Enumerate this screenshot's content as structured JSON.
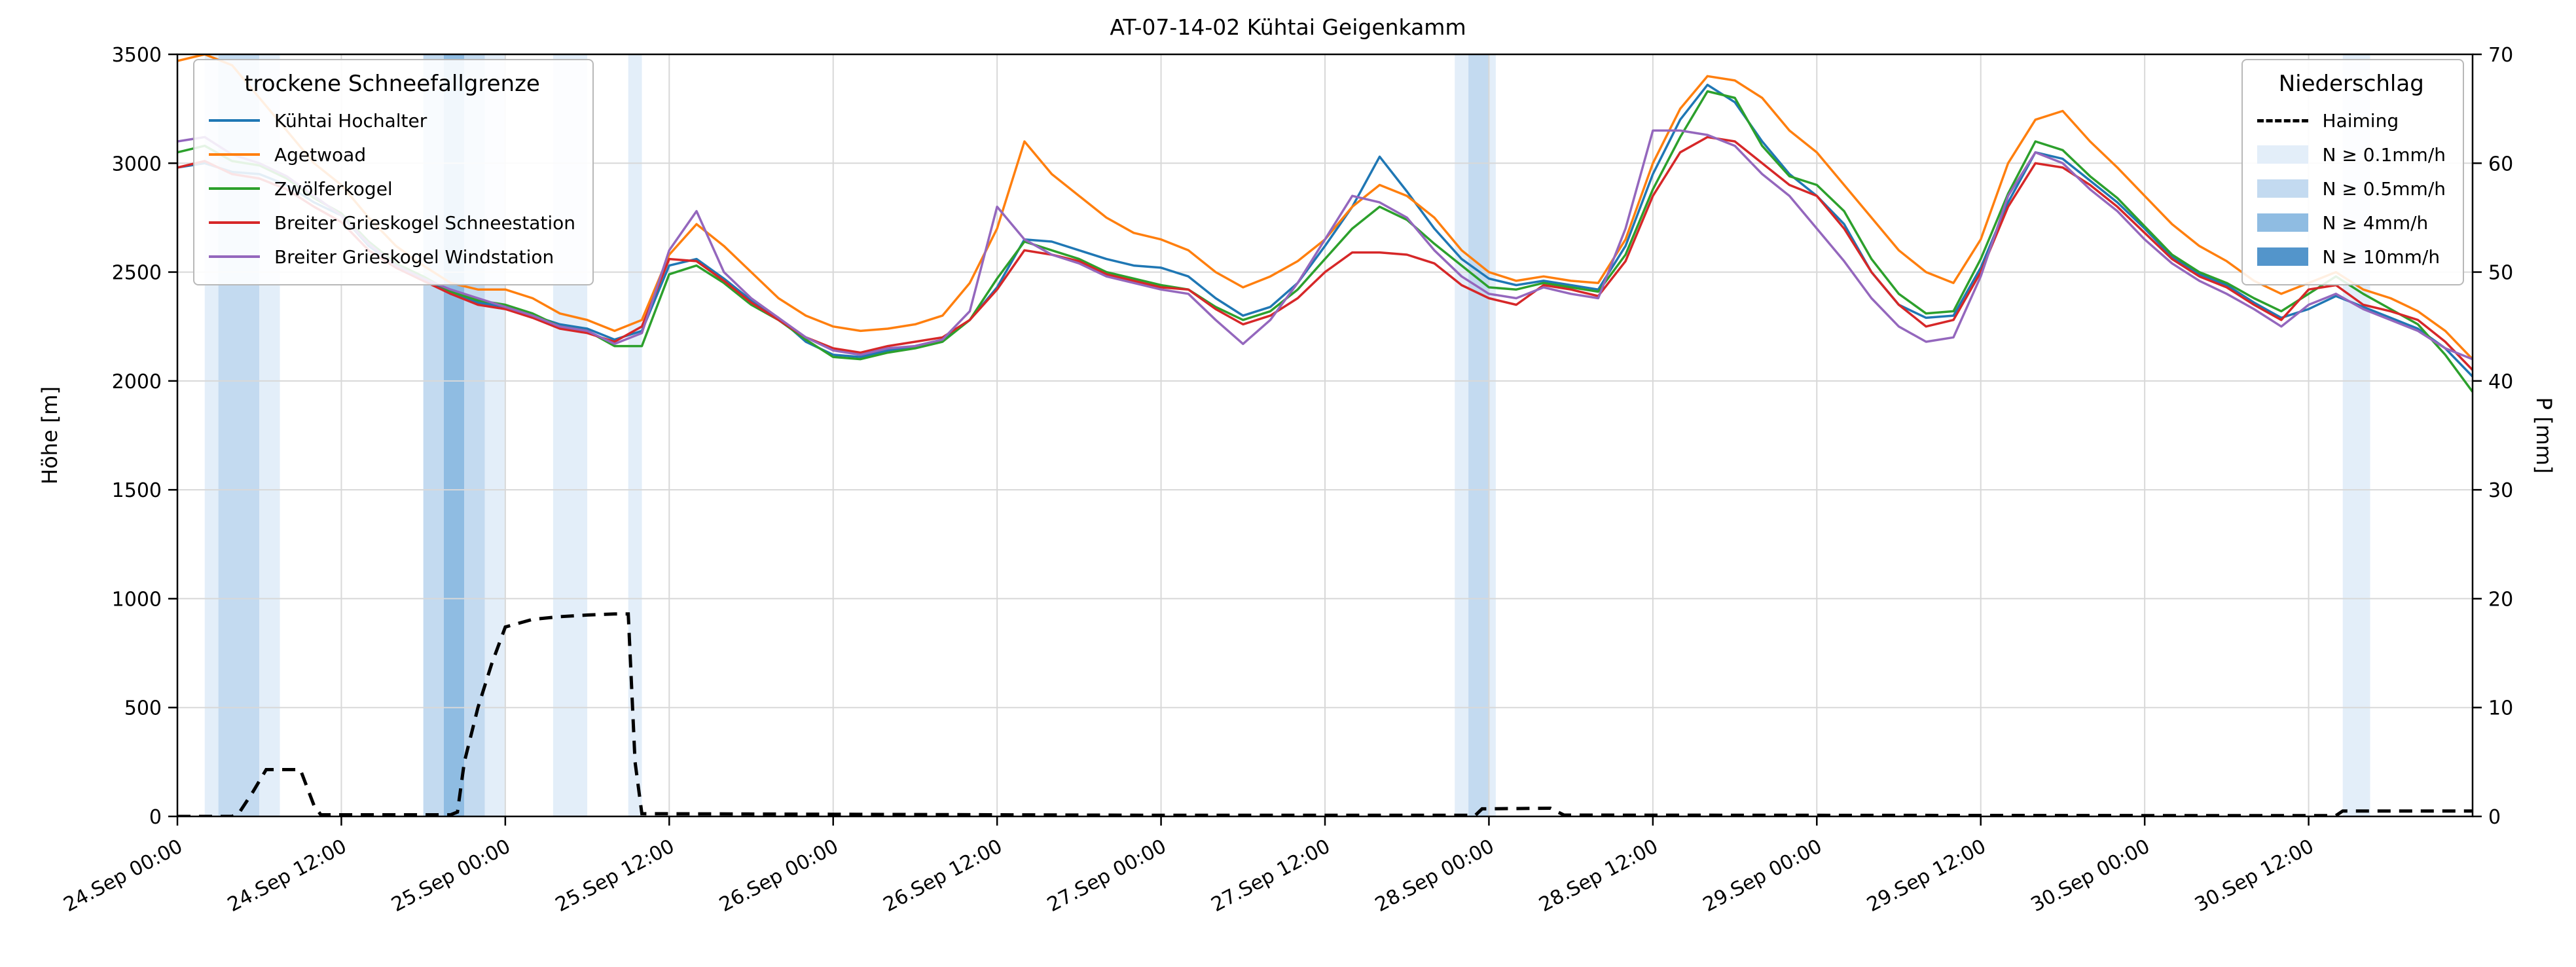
{
  "chart_data": {
    "type": "line",
    "title": "AT-07-14-02 Kühtai Geigenkamm",
    "ylabel_left": "Höhe [m]",
    "ylabel_right": "P [mm]",
    "ylim_left": [
      0,
      3500
    ],
    "ylim_right": [
      0,
      70
    ],
    "yticks_left": [
      0,
      500,
      1000,
      1500,
      2000,
      2500,
      3000,
      3500
    ],
    "yticks_right": [
      0,
      10,
      20,
      30,
      40,
      50,
      60,
      70
    ],
    "grid": true,
    "grid_color": "#d8d8d8",
    "x_unit": "hours since 24.Sep 00:00",
    "x_range": [
      0,
      168
    ],
    "x_step_hours": 2,
    "xticks": [
      {
        "t": 0,
        "label": "24.Sep 00:00"
      },
      {
        "t": 12,
        "label": "24.Sep 12:00"
      },
      {
        "t": 24,
        "label": "25.Sep 00:00"
      },
      {
        "t": 36,
        "label": "25.Sep 12:00"
      },
      {
        "t": 48,
        "label": "26.Sep 00:00"
      },
      {
        "t": 60,
        "label": "26.Sep 12:00"
      },
      {
        "t": 72,
        "label": "27.Sep 00:00"
      },
      {
        "t": 84,
        "label": "27.Sep 12:00"
      },
      {
        "t": 96,
        "label": "28.Sep 00:00"
      },
      {
        "t": 108,
        "label": "28.Sep 12:00"
      },
      {
        "t": 120,
        "label": "29.Sep 00:00"
      },
      {
        "t": 132,
        "label": "29.Sep 12:00"
      },
      {
        "t": 144,
        "label": "30.Sep 00:00"
      },
      {
        "t": 156,
        "label": "30.Sep 12:00"
      }
    ],
    "legend_snowline_title": "trockene Schneefallgrenze",
    "legend_precip_title": "Niederschlag",
    "series": [
      {
        "name": "Kühtai Hochalter",
        "color": "#1f77b4",
        "values": [
          2980,
          3000,
          2960,
          2950,
          2900,
          2820,
          2760,
          2620,
          2530,
          2470,
          2400,
          2360,
          2340,
          2300,
          2260,
          2240,
          2190,
          2230,
          2530,
          2560,
          2470,
          2370,
          2290,
          2180,
          2120,
          2110,
          2140,
          2160,
          2190,
          2280,
          2430,
          2650,
          2640,
          2600,
          2560,
          2530,
          2520,
          2480,
          2380,
          2300,
          2340,
          2450,
          2620,
          2800,
          3030,
          2870,
          2700,
          2560,
          2470,
          2440,
          2460,
          2440,
          2420,
          2620,
          2950,
          3200,
          3360,
          3280,
          3100,
          2950,
          2850,
          2720,
          2500,
          2350,
          2290,
          2300,
          2520,
          2820,
          3050,
          3020,
          2920,
          2820,
          2700,
          2570,
          2490,
          2440,
          2360,
          2290,
          2330,
          2390,
          2340,
          2290,
          2240,
          2150,
          2020
        ]
      },
      {
        "name": "Agetwoad",
        "color": "#ff7f0e",
        "values": [
          3470,
          3500,
          3450,
          3300,
          3150,
          3000,
          2900,
          2750,
          2620,
          2530,
          2450,
          2420,
          2420,
          2380,
          2310,
          2280,
          2230,
          2280,
          2580,
          2720,
          2620,
          2500,
          2380,
          2300,
          2250,
          2230,
          2240,
          2260,
          2300,
          2450,
          2700,
          3100,
          2950,
          2850,
          2750,
          2680,
          2650,
          2600,
          2500,
          2430,
          2480,
          2550,
          2650,
          2800,
          2900,
          2850,
          2750,
          2600,
          2500,
          2460,
          2480,
          2460,
          2450,
          2650,
          3000,
          3250,
          3400,
          3380,
          3300,
          3150,
          3050,
          2900,
          2750,
          2600,
          2500,
          2450,
          2650,
          3000,
          3200,
          3240,
          3100,
          2980,
          2850,
          2720,
          2620,
          2550,
          2460,
          2400,
          2450,
          2500,
          2420,
          2380,
          2320,
          2230,
          2100
        ]
      },
      {
        "name": "Zwölferkogel",
        "color": "#2ca02c",
        "values": [
          3050,
          3080,
          3010,
          2990,
          2930,
          2840,
          2770,
          2640,
          2540,
          2480,
          2410,
          2370,
          2350,
          2310,
          2250,
          2230,
          2160,
          2160,
          2490,
          2530,
          2450,
          2350,
          2280,
          2190,
          2110,
          2100,
          2130,
          2150,
          2180,
          2280,
          2470,
          2640,
          2600,
          2560,
          2500,
          2470,
          2440,
          2420,
          2340,
          2280,
          2320,
          2420,
          2560,
          2700,
          2800,
          2740,
          2630,
          2530,
          2430,
          2420,
          2450,
          2430,
          2410,
          2580,
          2880,
          3120,
          3330,
          3300,
          3080,
          2940,
          2900,
          2780,
          2560,
          2400,
          2310,
          2320,
          2560,
          2860,
          3100,
          3060,
          2940,
          2840,
          2710,
          2580,
          2500,
          2450,
          2380,
          2320,
          2400,
          2480,
          2400,
          2330,
          2260,
          2120,
          1950
        ]
      },
      {
        "name": "Breiter Grieskogel Schneestation",
        "color": "#d62728",
        "values": [
          2980,
          3010,
          2950,
          2930,
          2880,
          2800,
          2730,
          2600,
          2520,
          2460,
          2400,
          2350,
          2330,
          2290,
          2240,
          2220,
          2180,
          2250,
          2560,
          2550,
          2460,
          2360,
          2280,
          2200,
          2150,
          2130,
          2160,
          2180,
          2200,
          2280,
          2420,
          2600,
          2580,
          2550,
          2490,
          2460,
          2430,
          2420,
          2330,
          2260,
          2300,
          2380,
          2500,
          2590,
          2590,
          2580,
          2540,
          2440,
          2380,
          2350,
          2440,
          2420,
          2390,
          2550,
          2850,
          3050,
          3120,
          3100,
          3000,
          2900,
          2850,
          2700,
          2500,
          2350,
          2250,
          2280,
          2500,
          2800,
          3000,
          2980,
          2900,
          2800,
          2680,
          2560,
          2480,
          2430,
          2350,
          2280,
          2420,
          2440,
          2350,
          2320,
          2280,
          2180,
          2050
        ]
      },
      {
        "name": "Breiter Grieskogel Windstation",
        "color": "#9467bd",
        "values": [
          3100,
          3120,
          3040,
          3000,
          2940,
          2850,
          2760,
          2630,
          2530,
          2470,
          2420,
          2380,
          2340,
          2300,
          2250,
          2230,
          2170,
          2220,
          2600,
          2780,
          2500,
          2380,
          2290,
          2200,
          2140,
          2120,
          2150,
          2160,
          2190,
          2320,
          2800,
          2650,
          2580,
          2540,
          2480,
          2450,
          2420,
          2400,
          2280,
          2170,
          2280,
          2450,
          2650,
          2850,
          2820,
          2750,
          2600,
          2480,
          2400,
          2380,
          2430,
          2400,
          2380,
          2700,
          3150,
          3150,
          3130,
          3080,
          2950,
          2850,
          2700,
          2550,
          2380,
          2250,
          2180,
          2200,
          2480,
          2850,
          3050,
          3000,
          2880,
          2780,
          2650,
          2540,
          2460,
          2400,
          2330,
          2250,
          2350,
          2400,
          2330,
          2280,
          2230,
          2150,
          2100
        ]
      }
    ],
    "haiming": {
      "name": "Haiming",
      "color": "#000000",
      "style": "dashed",
      "axis": "right",
      "x": [
        0,
        4,
        4.5,
        5.5,
        6.5,
        9,
        10,
        10.5,
        20,
        20.5,
        21,
        22,
        23,
        24,
        26,
        28,
        30,
        32,
        33,
        33.5,
        34,
        48,
        72,
        95,
        95.5,
        100.5,
        101.5,
        120,
        144,
        158,
        158.5,
        168
      ],
      "p_mm": [
        0,
        0,
        0.3,
        2.2,
        4.3,
        4.3,
        1.0,
        0.15,
        0.15,
        0.4,
        5,
        10,
        14,
        17.4,
        18.1,
        18.35,
        18.5,
        18.6,
        18.6,
        5,
        0.25,
        0.2,
        0.1,
        0.1,
        0.7,
        0.75,
        0.12,
        0.1,
        0.08,
        0.08,
        0.5,
        0.5
      ]
    },
    "band_levels": [
      {
        "label": "N ≥ 0.1mm/h",
        "color": "#e3eef9"
      },
      {
        "label": "N ≥ 0.5mm/h",
        "color": "#c3daf0"
      },
      {
        "label": "N ≥ 4mm/h",
        "color": "#8fbce2"
      },
      {
        "label": "N ≥ 10mm/h",
        "color": "#5395cb"
      }
    ],
    "precip_bands": [
      {
        "start": 2,
        "end": 3,
        "level": 0
      },
      {
        "start": 3,
        "end": 6,
        "level": 1
      },
      {
        "start": 6,
        "end": 7.5,
        "level": 0
      },
      {
        "start": 18,
        "end": 19.5,
        "level": 1
      },
      {
        "start": 19.5,
        "end": 21,
        "level": 2
      },
      {
        "start": 21,
        "end": 22.5,
        "level": 1
      },
      {
        "start": 22.5,
        "end": 24,
        "level": 0
      },
      {
        "start": 27.5,
        "end": 30,
        "level": 0
      },
      {
        "start": 33,
        "end": 34,
        "level": 0
      },
      {
        "start": 93.5,
        "end": 96.5,
        "level": 0
      },
      {
        "start": 94.5,
        "end": 96,
        "level": 1
      },
      {
        "start": 158.5,
        "end": 160.5,
        "level": 0
      }
    ]
  }
}
